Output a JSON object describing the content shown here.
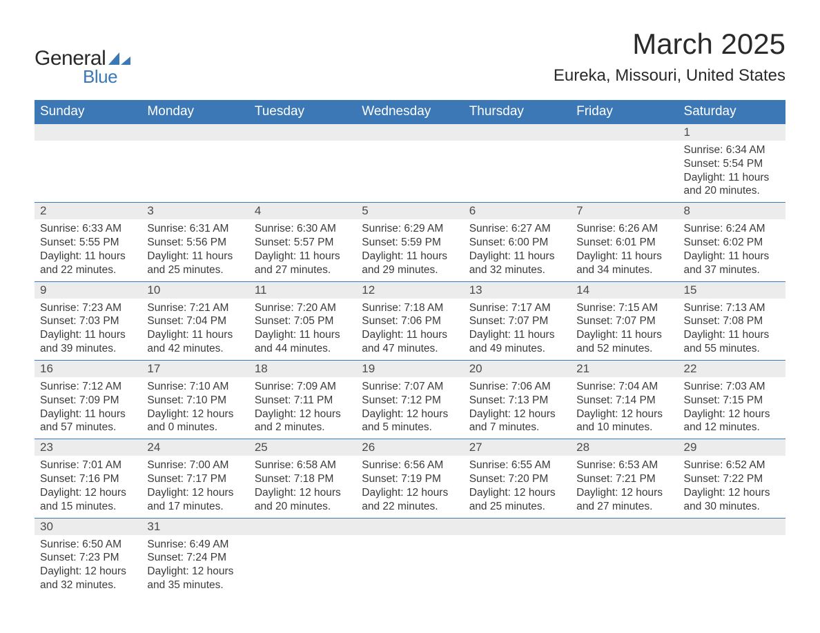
{
  "brand": {
    "word1": "General",
    "word2": "Blue",
    "accent_color": "#3b78b5",
    "text_color": "#2a2a2a"
  },
  "header": {
    "month_title": "March 2025",
    "location": "Eureka, Missouri, United States",
    "title_fontsize": 42,
    "location_fontsize": 24
  },
  "calendar": {
    "header_bg": "#3b78b5",
    "header_text_color": "#ffffff",
    "daynum_bg": "#ececec",
    "cell_border_color": "#3b78b5",
    "body_text_color": "#3a3a3a",
    "header_fontsize": 19,
    "daynum_fontsize": 17,
    "body_fontsize": 15.5,
    "columns": [
      "Sunday",
      "Monday",
      "Tuesday",
      "Wednesday",
      "Thursday",
      "Friday",
      "Saturday"
    ],
    "weeks": [
      [
        {
          "day": "",
          "sunrise": "",
          "sunset": "",
          "daylight": ""
        },
        {
          "day": "",
          "sunrise": "",
          "sunset": "",
          "daylight": ""
        },
        {
          "day": "",
          "sunrise": "",
          "sunset": "",
          "daylight": ""
        },
        {
          "day": "",
          "sunrise": "",
          "sunset": "",
          "daylight": ""
        },
        {
          "day": "",
          "sunrise": "",
          "sunset": "",
          "daylight": ""
        },
        {
          "day": "",
          "sunrise": "",
          "sunset": "",
          "daylight": ""
        },
        {
          "day": "1",
          "sunrise": "Sunrise: 6:34 AM",
          "sunset": "Sunset: 5:54 PM",
          "daylight": "Daylight: 11 hours and 20 minutes."
        }
      ],
      [
        {
          "day": "2",
          "sunrise": "Sunrise: 6:33 AM",
          "sunset": "Sunset: 5:55 PM",
          "daylight": "Daylight: 11 hours and 22 minutes."
        },
        {
          "day": "3",
          "sunrise": "Sunrise: 6:31 AM",
          "sunset": "Sunset: 5:56 PM",
          "daylight": "Daylight: 11 hours and 25 minutes."
        },
        {
          "day": "4",
          "sunrise": "Sunrise: 6:30 AM",
          "sunset": "Sunset: 5:57 PM",
          "daylight": "Daylight: 11 hours and 27 minutes."
        },
        {
          "day": "5",
          "sunrise": "Sunrise: 6:29 AM",
          "sunset": "Sunset: 5:59 PM",
          "daylight": "Daylight: 11 hours and 29 minutes."
        },
        {
          "day": "6",
          "sunrise": "Sunrise: 6:27 AM",
          "sunset": "Sunset: 6:00 PM",
          "daylight": "Daylight: 11 hours and 32 minutes."
        },
        {
          "day": "7",
          "sunrise": "Sunrise: 6:26 AM",
          "sunset": "Sunset: 6:01 PM",
          "daylight": "Daylight: 11 hours and 34 minutes."
        },
        {
          "day": "8",
          "sunrise": "Sunrise: 6:24 AM",
          "sunset": "Sunset: 6:02 PM",
          "daylight": "Daylight: 11 hours and 37 minutes."
        }
      ],
      [
        {
          "day": "9",
          "sunrise": "Sunrise: 7:23 AM",
          "sunset": "Sunset: 7:03 PM",
          "daylight": "Daylight: 11 hours and 39 minutes."
        },
        {
          "day": "10",
          "sunrise": "Sunrise: 7:21 AM",
          "sunset": "Sunset: 7:04 PM",
          "daylight": "Daylight: 11 hours and 42 minutes."
        },
        {
          "day": "11",
          "sunrise": "Sunrise: 7:20 AM",
          "sunset": "Sunset: 7:05 PM",
          "daylight": "Daylight: 11 hours and 44 minutes."
        },
        {
          "day": "12",
          "sunrise": "Sunrise: 7:18 AM",
          "sunset": "Sunset: 7:06 PM",
          "daylight": "Daylight: 11 hours and 47 minutes."
        },
        {
          "day": "13",
          "sunrise": "Sunrise: 7:17 AM",
          "sunset": "Sunset: 7:07 PM",
          "daylight": "Daylight: 11 hours and 49 minutes."
        },
        {
          "day": "14",
          "sunrise": "Sunrise: 7:15 AM",
          "sunset": "Sunset: 7:07 PM",
          "daylight": "Daylight: 11 hours and 52 minutes."
        },
        {
          "day": "15",
          "sunrise": "Sunrise: 7:13 AM",
          "sunset": "Sunset: 7:08 PM",
          "daylight": "Daylight: 11 hours and 55 minutes."
        }
      ],
      [
        {
          "day": "16",
          "sunrise": "Sunrise: 7:12 AM",
          "sunset": "Sunset: 7:09 PM",
          "daylight": "Daylight: 11 hours and 57 minutes."
        },
        {
          "day": "17",
          "sunrise": "Sunrise: 7:10 AM",
          "sunset": "Sunset: 7:10 PM",
          "daylight": "Daylight: 12 hours and 0 minutes."
        },
        {
          "day": "18",
          "sunrise": "Sunrise: 7:09 AM",
          "sunset": "Sunset: 7:11 PM",
          "daylight": "Daylight: 12 hours and 2 minutes."
        },
        {
          "day": "19",
          "sunrise": "Sunrise: 7:07 AM",
          "sunset": "Sunset: 7:12 PM",
          "daylight": "Daylight: 12 hours and 5 minutes."
        },
        {
          "day": "20",
          "sunrise": "Sunrise: 7:06 AM",
          "sunset": "Sunset: 7:13 PM",
          "daylight": "Daylight: 12 hours and 7 minutes."
        },
        {
          "day": "21",
          "sunrise": "Sunrise: 7:04 AM",
          "sunset": "Sunset: 7:14 PM",
          "daylight": "Daylight: 12 hours and 10 minutes."
        },
        {
          "day": "22",
          "sunrise": "Sunrise: 7:03 AM",
          "sunset": "Sunset: 7:15 PM",
          "daylight": "Daylight: 12 hours and 12 minutes."
        }
      ],
      [
        {
          "day": "23",
          "sunrise": "Sunrise: 7:01 AM",
          "sunset": "Sunset: 7:16 PM",
          "daylight": "Daylight: 12 hours and 15 minutes."
        },
        {
          "day": "24",
          "sunrise": "Sunrise: 7:00 AM",
          "sunset": "Sunset: 7:17 PM",
          "daylight": "Daylight: 12 hours and 17 minutes."
        },
        {
          "day": "25",
          "sunrise": "Sunrise: 6:58 AM",
          "sunset": "Sunset: 7:18 PM",
          "daylight": "Daylight: 12 hours and 20 minutes."
        },
        {
          "day": "26",
          "sunrise": "Sunrise: 6:56 AM",
          "sunset": "Sunset: 7:19 PM",
          "daylight": "Daylight: 12 hours and 22 minutes."
        },
        {
          "day": "27",
          "sunrise": "Sunrise: 6:55 AM",
          "sunset": "Sunset: 7:20 PM",
          "daylight": "Daylight: 12 hours and 25 minutes."
        },
        {
          "day": "28",
          "sunrise": "Sunrise: 6:53 AM",
          "sunset": "Sunset: 7:21 PM",
          "daylight": "Daylight: 12 hours and 27 minutes."
        },
        {
          "day": "29",
          "sunrise": "Sunrise: 6:52 AM",
          "sunset": "Sunset: 7:22 PM",
          "daylight": "Daylight: 12 hours and 30 minutes."
        }
      ],
      [
        {
          "day": "30",
          "sunrise": "Sunrise: 6:50 AM",
          "sunset": "Sunset: 7:23 PM",
          "daylight": "Daylight: 12 hours and 32 minutes."
        },
        {
          "day": "31",
          "sunrise": "Sunrise: 6:49 AM",
          "sunset": "Sunset: 7:24 PM",
          "daylight": "Daylight: 12 hours and 35 minutes."
        },
        {
          "day": "",
          "sunrise": "",
          "sunset": "",
          "daylight": ""
        },
        {
          "day": "",
          "sunrise": "",
          "sunset": "",
          "daylight": ""
        },
        {
          "day": "",
          "sunrise": "",
          "sunset": "",
          "daylight": ""
        },
        {
          "day": "",
          "sunrise": "",
          "sunset": "",
          "daylight": ""
        },
        {
          "day": "",
          "sunrise": "",
          "sunset": "",
          "daylight": ""
        }
      ]
    ]
  }
}
